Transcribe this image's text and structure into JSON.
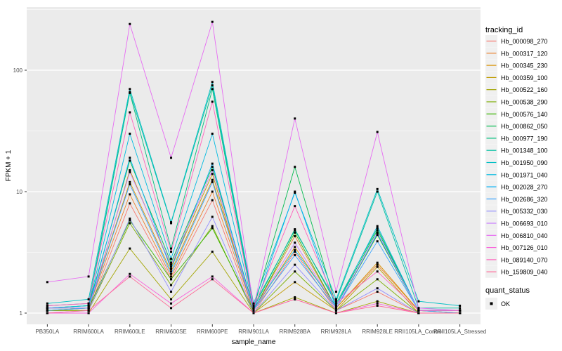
{
  "figure": {
    "background": "#FFFFFF",
    "panel_background": "#EBEBEB",
    "gridline_color": "#FFFFFF",
    "axis_text_color": "#4D4D4D",
    "point_color": "#000000",
    "legend_key_background": "#F0F0F0"
  },
  "legend": {
    "color_title": "tracking_id",
    "shape_title": "quant_status",
    "shape_items": [
      {
        "label": "OK",
        "shape": "filled-square",
        "color": "#000000"
      }
    ]
  },
  "chart_data": {
    "type": "line",
    "title": "",
    "xlabel": "sample_name",
    "ylabel": "FPKM + 1",
    "y_scale": "log10",
    "y_ticks": [
      1,
      10,
      100
    ],
    "ylim": [
      1,
      320
    ],
    "grid": "major-and-minor-white-on-gray",
    "legend_position": "right",
    "point_shape": "small-black-square",
    "categories": [
      "PB350LA",
      "RRIM600LA",
      "RRIM600LE",
      "RRIM600SE",
      "RRIM600PE",
      "RRIM901LA",
      "RRIM928BA",
      "RRIM928LA",
      "RRIM928LE",
      "RRII105LA_Control",
      "RRII105LA_Stressed"
    ],
    "series": [
      {
        "name": "Hb_000098_270",
        "color": "#F8766D",
        "values": [
          1.05,
          1.05,
          8.0,
          1.9,
          8.5,
          1.0,
          3.2,
          1.05,
          1.5,
          1.0,
          1.0
        ]
      },
      {
        "name": "Hb_000317_120",
        "color": "#EA8331",
        "values": [
          1.05,
          1.1,
          9.5,
          2.0,
          10.0,
          1.05,
          4.3,
          1.1,
          2.5,
          1.05,
          1.0
        ]
      },
      {
        "name": "Hb_000345_230",
        "color": "#D89000",
        "values": [
          1.1,
          1.1,
          12.0,
          2.2,
          12.5,
          1.05,
          3.5,
          1.1,
          2.6,
          1.05,
          1.0
        ]
      },
      {
        "name": "Hb_000359_100",
        "color": "#C09B00",
        "values": [
          1.05,
          1.05,
          15.0,
          2.4,
          14.0,
          1.0,
          1.8,
          1.05,
          2.4,
          1.0,
          1.0
        ]
      },
      {
        "name": "Hb_000522_160",
        "color": "#A3A500",
        "values": [
          1.0,
          1.0,
          3.4,
          1.3,
          3.2,
          1.0,
          1.35,
          1.0,
          1.25,
          1.0,
          1.0
        ]
      },
      {
        "name": "Hb_000538_290",
        "color": "#7CAE00",
        "values": [
          1.05,
          1.05,
          5.5,
          1.7,
          5.2,
          1.0,
          2.2,
          1.05,
          1.9,
          1.0,
          1.0
        ]
      },
      {
        "name": "Hb_000576_140",
        "color": "#39B600",
        "values": [
          1.05,
          1.1,
          5.8,
          1.9,
          5.0,
          1.05,
          4.6,
          1.1,
          4.4,
          1.05,
          1.05
        ]
      },
      {
        "name": "Hb_000862_050",
        "color": "#00BB4E",
        "values": [
          1.1,
          1.15,
          18.0,
          2.6,
          16.0,
          1.1,
          16.0,
          1.15,
          4.8,
          1.05,
          1.05
        ]
      },
      {
        "name": "Hb_000977_190",
        "color": "#00BF7D",
        "values": [
          1.1,
          1.15,
          65.0,
          3.4,
          70.0,
          1.1,
          4.9,
          1.2,
          5.0,
          1.05,
          1.05
        ]
      },
      {
        "name": "Hb_001348_100",
        "color": "#00C1A3",
        "values": [
          1.15,
          1.2,
          66.0,
          5.5,
          75.0,
          1.15,
          4.8,
          1.25,
          10.0,
          1.1,
          1.1
        ]
      },
      {
        "name": "Hb_001950_090",
        "color": "#00BFC4",
        "values": [
          1.2,
          1.3,
          70.0,
          5.6,
          80.0,
          1.2,
          9.8,
          1.3,
          10.5,
          1.25,
          1.15
        ]
      },
      {
        "name": "Hb_001971_040",
        "color": "#00BAE0",
        "values": [
          1.1,
          1.15,
          30.0,
          2.8,
          30.0,
          1.1,
          3.3,
          1.15,
          5.2,
          1.05,
          1.05
        ]
      },
      {
        "name": "Hb_002028_270",
        "color": "#00B0F6",
        "values": [
          1.1,
          1.1,
          19.0,
          2.3,
          17.0,
          1.05,
          10.0,
          1.1,
          4.5,
          1.05,
          1.05
        ]
      },
      {
        "name": "Hb_002686_320",
        "color": "#35A2FF",
        "values": [
          1.05,
          1.1,
          11.5,
          2.1,
          12.0,
          1.05,
          3.0,
          1.1,
          3.9,
          1.05,
          1.0
        ]
      },
      {
        "name": "Hb_005332_030",
        "color": "#9590FF",
        "values": [
          1.0,
          1.05,
          6.0,
          1.5,
          6.2,
          1.0,
          2.5,
          1.05,
          1.6,
          1.0,
          1.0
        ]
      },
      {
        "name": "Hb_006693_010",
        "color": "#C77CFF",
        "values": [
          1.1,
          1.1,
          14.5,
          2.5,
          15.0,
          1.05,
          3.8,
          1.1,
          4.6,
          1.05,
          1.05
        ]
      },
      {
        "name": "Hb_006810_040",
        "color": "#E76BF3",
        "values": [
          1.8,
          2.0,
          240.0,
          19.0,
          250.0,
          1.1,
          40.0,
          1.5,
          31.0,
          1.1,
          1.05
        ]
      },
      {
        "name": "Hb_007126_010",
        "color": "#FA62DB",
        "values": [
          1.0,
          1.0,
          2.1,
          1.2,
          2.0,
          1.0,
          1.3,
          1.0,
          1.2,
          1.0,
          1.0
        ]
      },
      {
        "name": "Hb_089140_070",
        "color": "#FF62BC",
        "values": [
          1.15,
          1.2,
          45.0,
          3.2,
          55.0,
          1.1,
          7.6,
          1.2,
          2.2,
          1.05,
          1.05
        ]
      },
      {
        "name": "Hb_159809_040",
        "color": "#FF6A98",
        "values": [
          1.0,
          1.05,
          2.0,
          1.1,
          1.9,
          1.0,
          1.3,
          1.0,
          1.15,
          1.0,
          1.0
        ]
      }
    ]
  }
}
